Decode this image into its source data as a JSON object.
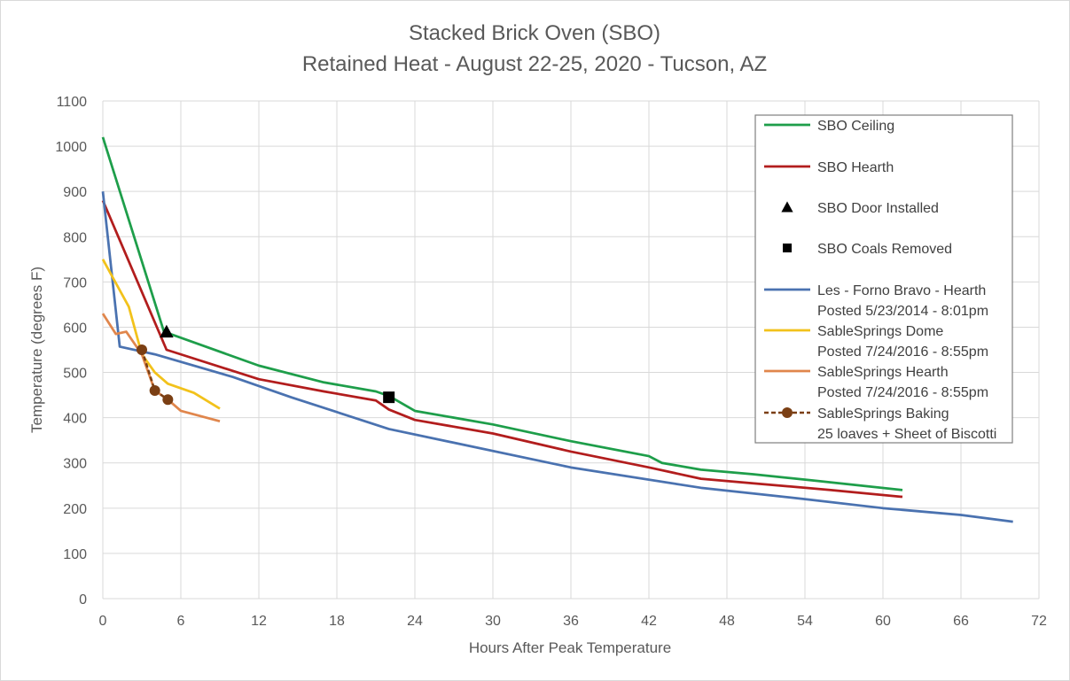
{
  "chart_data": {
    "type": "line",
    "title": "Stacked Brick Oven (SBO)",
    "subtitle": "Retained Heat - August 22-25, 2020 - Tucson, AZ",
    "xlabel": "Hours After Peak Temperature",
    "ylabel": "Temperature (degrees F)",
    "xlim": [
      0,
      72
    ],
    "ylim": [
      0,
      1100
    ],
    "xticks": [
      0,
      6,
      12,
      18,
      24,
      30,
      36,
      42,
      48,
      54,
      60,
      66,
      72
    ],
    "yticks": [
      0,
      100,
      200,
      300,
      400,
      500,
      600,
      700,
      800,
      900,
      1000,
      1100
    ],
    "grid": true,
    "legend_position": "top-right",
    "series": [
      {
        "name": "SBO Ceiling",
        "color": "#1e9e4a",
        "style": "line",
        "x": [
          0,
          4.7,
          12,
          17,
          21,
          22,
          24,
          30,
          36,
          42,
          43,
          46,
          50,
          55,
          61.5
        ],
        "y": [
          1020,
          590,
          515,
          478,
          458,
          448,
          415,
          385,
          348,
          315,
          300,
          285,
          275,
          260,
          240
        ]
      },
      {
        "name": "SBO Hearth",
        "color": "#b21d1d",
        "style": "line",
        "x": [
          0,
          4.9,
          12,
          17,
          21,
          22,
          24,
          30,
          36,
          42,
          46,
          50,
          56,
          61.5
        ],
        "y": [
          880,
          550,
          485,
          458,
          438,
          418,
          395,
          365,
          325,
          290,
          265,
          255,
          240,
          225
        ]
      },
      {
        "name": "SBO Door Installed",
        "color": "#000000",
        "style": "triangle",
        "x": [
          4.9
        ],
        "y": [
          590
        ]
      },
      {
        "name": "SBO Coals Removed",
        "color": "#000000",
        "style": "square",
        "x": [
          22
        ],
        "y": [
          445
        ]
      },
      {
        "name": "Les - Forno Bravo - Hearth",
        "legend_line2": "Posted 5/23/2014 - 8:01pm",
        "color": "#4a72b0",
        "style": "line",
        "x": [
          0,
          1.3,
          4,
          10,
          14.5,
          22,
          36,
          46,
          54,
          60,
          66,
          70
        ],
        "y": [
          900,
          557,
          540,
          490,
          445,
          375,
          290,
          245,
          220,
          200,
          185,
          170
        ]
      },
      {
        "name": "SableSprings Dome",
        "legend_line2": "Posted 7/24/2016 - 8:55pm",
        "color": "#f2c21b",
        "style": "line",
        "x": [
          0,
          2,
          3,
          4,
          5,
          7,
          9
        ],
        "y": [
          750,
          645,
          540,
          500,
          475,
          455,
          420
        ]
      },
      {
        "name": "SableSprings Hearth",
        "legend_line2": "Posted 7/24/2016 - 8:55pm",
        "color": "#e0864c",
        "style": "line",
        "x": [
          0,
          1,
          1.8,
          3,
          4,
          5,
          6,
          9
        ],
        "y": [
          630,
          585,
          590,
          540,
          460,
          440,
          415,
          392
        ]
      },
      {
        "name": "SableSprings Baking",
        "legend_line2": "25 loaves + Sheet of Biscotti",
        "color": "#7b3f14",
        "style": "dashed-circle",
        "x": [
          3,
          4,
          5
        ],
        "y": [
          550,
          460,
          440
        ]
      }
    ]
  }
}
